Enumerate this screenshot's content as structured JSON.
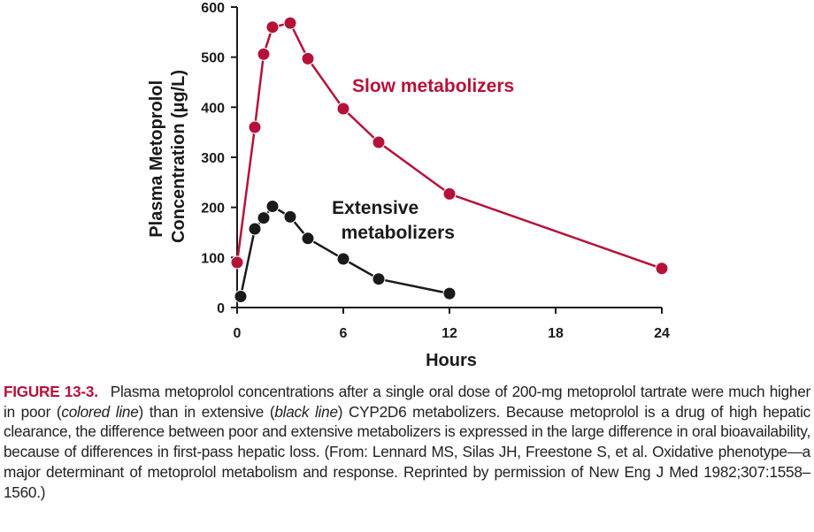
{
  "chart_data": {
    "type": "line",
    "xlabel": "Hours",
    "ylabel_lines": [
      "Plasma Metoprolol",
      "Concentration (µg/L)"
    ],
    "xlim": [
      0,
      24
    ],
    "ylim": [
      0,
      600
    ],
    "x_ticks": [
      0,
      6,
      12,
      18,
      24
    ],
    "y_ticks": [
      0,
      100,
      200,
      300,
      400,
      500,
      600
    ],
    "grid": false,
    "series": [
      {
        "name": "Slow metabolizers",
        "color": "#b5123a",
        "x": [
          0,
          1,
          1.5,
          2,
          3,
          4,
          6,
          8,
          12,
          24
        ],
        "y": [
          90,
          360,
          506,
          560,
          568,
          497,
          397,
          330,
          227,
          78
        ]
      },
      {
        "name": "Extensive metabolizers",
        "label_lines": [
          "Extensive",
          "metabolizers"
        ],
        "color": "#1a1a1a",
        "x": [
          0.2,
          1,
          1.5,
          2,
          3,
          4,
          6,
          8,
          12
        ],
        "y": [
          22,
          157,
          179,
          202,
          181,
          138,
          97,
          57,
          28
        ]
      }
    ]
  },
  "caption": {
    "figure_label": "FIGURE 13-3.",
    "part1": "Plasma metoprolol concentrations after a single oral dose of 200-mg metoprolol tartrate were much higher in poor (",
    "italic1": "colored line",
    "part2": ") than in extensive (",
    "italic2": "black line",
    "part3": ") CYP2D6 metabolizers. Because metoprolol is a drug of high hepatic clearance, the difference between poor and extensive metabolizers is expressed in the large difference in oral bioavailability, because of differences in first-pass hepatic loss. (From: Lennard MS, Silas JH, Freestone S, et al. Oxidative phenotype—a major determinant of metoprolol metabolism and response. Reprinted by permission of New Eng J Med 1982;307:1558–1560.)"
  }
}
